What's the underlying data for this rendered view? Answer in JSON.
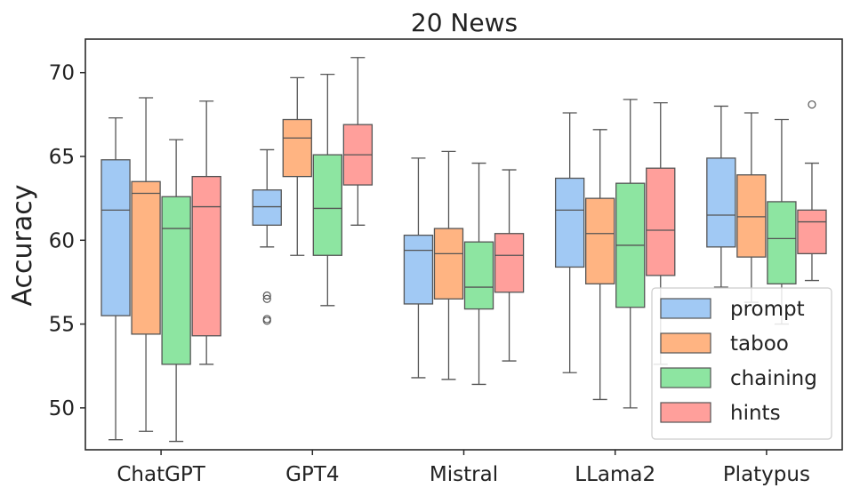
{
  "chart_data": {
    "type": "boxplot",
    "title": "20 News",
    "xlabel": "",
    "ylabel": "Accuracy",
    "ylim": [
      47.5,
      72.0
    ],
    "yticks": [
      50,
      55,
      60,
      65,
      70
    ],
    "ytick_labels": [
      "50",
      "55",
      "60",
      "65",
      "70"
    ],
    "grid": false,
    "legend_position": "bottom-right",
    "categories": [
      "ChatGPT",
      "GPT4",
      "Mistral",
      "LLama2",
      "Platypus"
    ],
    "series": [
      {
        "name": "prompt",
        "color": "#a1c9f4",
        "boxes": [
          {
            "whisker_low": 48.1,
            "q1": 55.5,
            "median": 61.8,
            "q3": 64.8,
            "whisker_high": 67.3,
            "outliers": []
          },
          {
            "whisker_low": 59.6,
            "q1": 60.9,
            "median": 62.0,
            "q3": 63.0,
            "whisker_high": 65.4,
            "outliers": [
              56.5,
              56.7,
              55.2,
              55.3
            ]
          },
          {
            "whisker_low": 51.8,
            "q1": 56.2,
            "median": 59.4,
            "q3": 60.3,
            "whisker_high": 64.9,
            "outliers": []
          },
          {
            "whisker_low": 52.1,
            "q1": 58.4,
            "median": 61.8,
            "q3": 63.7,
            "whisker_high": 67.6,
            "outliers": []
          },
          {
            "whisker_low": 57.2,
            "q1": 59.6,
            "median": 61.5,
            "q3": 64.9,
            "whisker_high": 68.0,
            "outliers": []
          }
        ]
      },
      {
        "name": "taboo",
        "color": "#ffb482",
        "boxes": [
          {
            "whisker_low": 48.6,
            "q1": 54.4,
            "median": 62.8,
            "q3": 63.5,
            "whisker_high": 68.5,
            "outliers": []
          },
          {
            "whisker_low": 59.1,
            "q1": 63.8,
            "median": 66.1,
            "q3": 67.2,
            "whisker_high": 69.7,
            "outliers": []
          },
          {
            "whisker_low": 51.7,
            "q1": 56.5,
            "median": 59.2,
            "q3": 60.7,
            "whisker_high": 65.3,
            "outliers": []
          },
          {
            "whisker_low": 50.5,
            "q1": 57.4,
            "median": 60.4,
            "q3": 62.5,
            "whisker_high": 66.6,
            "outliers": []
          },
          {
            "whisker_low": 56.3,
            "q1": 59.0,
            "median": 61.4,
            "q3": 63.9,
            "whisker_high": 67.6,
            "outliers": []
          }
        ]
      },
      {
        "name": "chaining",
        "color": "#8de5a1",
        "boxes": [
          {
            "whisker_low": 48.0,
            "q1": 52.6,
            "median": 60.7,
            "q3": 62.6,
            "whisker_high": 66.0,
            "outliers": []
          },
          {
            "whisker_low": 56.1,
            "q1": 59.1,
            "median": 61.9,
            "q3": 65.1,
            "whisker_high": 69.9,
            "outliers": []
          },
          {
            "whisker_low": 51.4,
            "q1": 55.9,
            "median": 57.2,
            "q3": 59.9,
            "whisker_high": 64.6,
            "outliers": []
          },
          {
            "whisker_low": 50.0,
            "q1": 56.0,
            "median": 59.7,
            "q3": 63.4,
            "whisker_high": 68.4,
            "outliers": []
          },
          {
            "whisker_low": 55.0,
            "q1": 57.4,
            "median": 60.1,
            "q3": 62.3,
            "whisker_high": 67.2,
            "outliers": []
          }
        ]
      },
      {
        "name": "hints",
        "color": "#ff9f9b",
        "boxes": [
          {
            "whisker_low": 52.6,
            "q1": 54.3,
            "median": 62.0,
            "q3": 63.8,
            "whisker_high": 68.3,
            "outliers": []
          },
          {
            "whisker_low": 60.9,
            "q1": 63.3,
            "median": 65.1,
            "q3": 66.9,
            "whisker_high": 70.9,
            "outliers": []
          },
          {
            "whisker_low": 52.8,
            "q1": 56.9,
            "median": 59.1,
            "q3": 60.4,
            "whisker_high": 64.2,
            "outliers": []
          },
          {
            "whisker_low": 52.6,
            "q1": 57.9,
            "median": 60.6,
            "q3": 64.3,
            "whisker_high": 68.2,
            "outliers": []
          },
          {
            "whisker_low": 57.6,
            "q1": 59.2,
            "median": 61.1,
            "q3": 61.8,
            "whisker_high": 64.6,
            "outliers": [
              68.1
            ]
          }
        ]
      }
    ]
  }
}
